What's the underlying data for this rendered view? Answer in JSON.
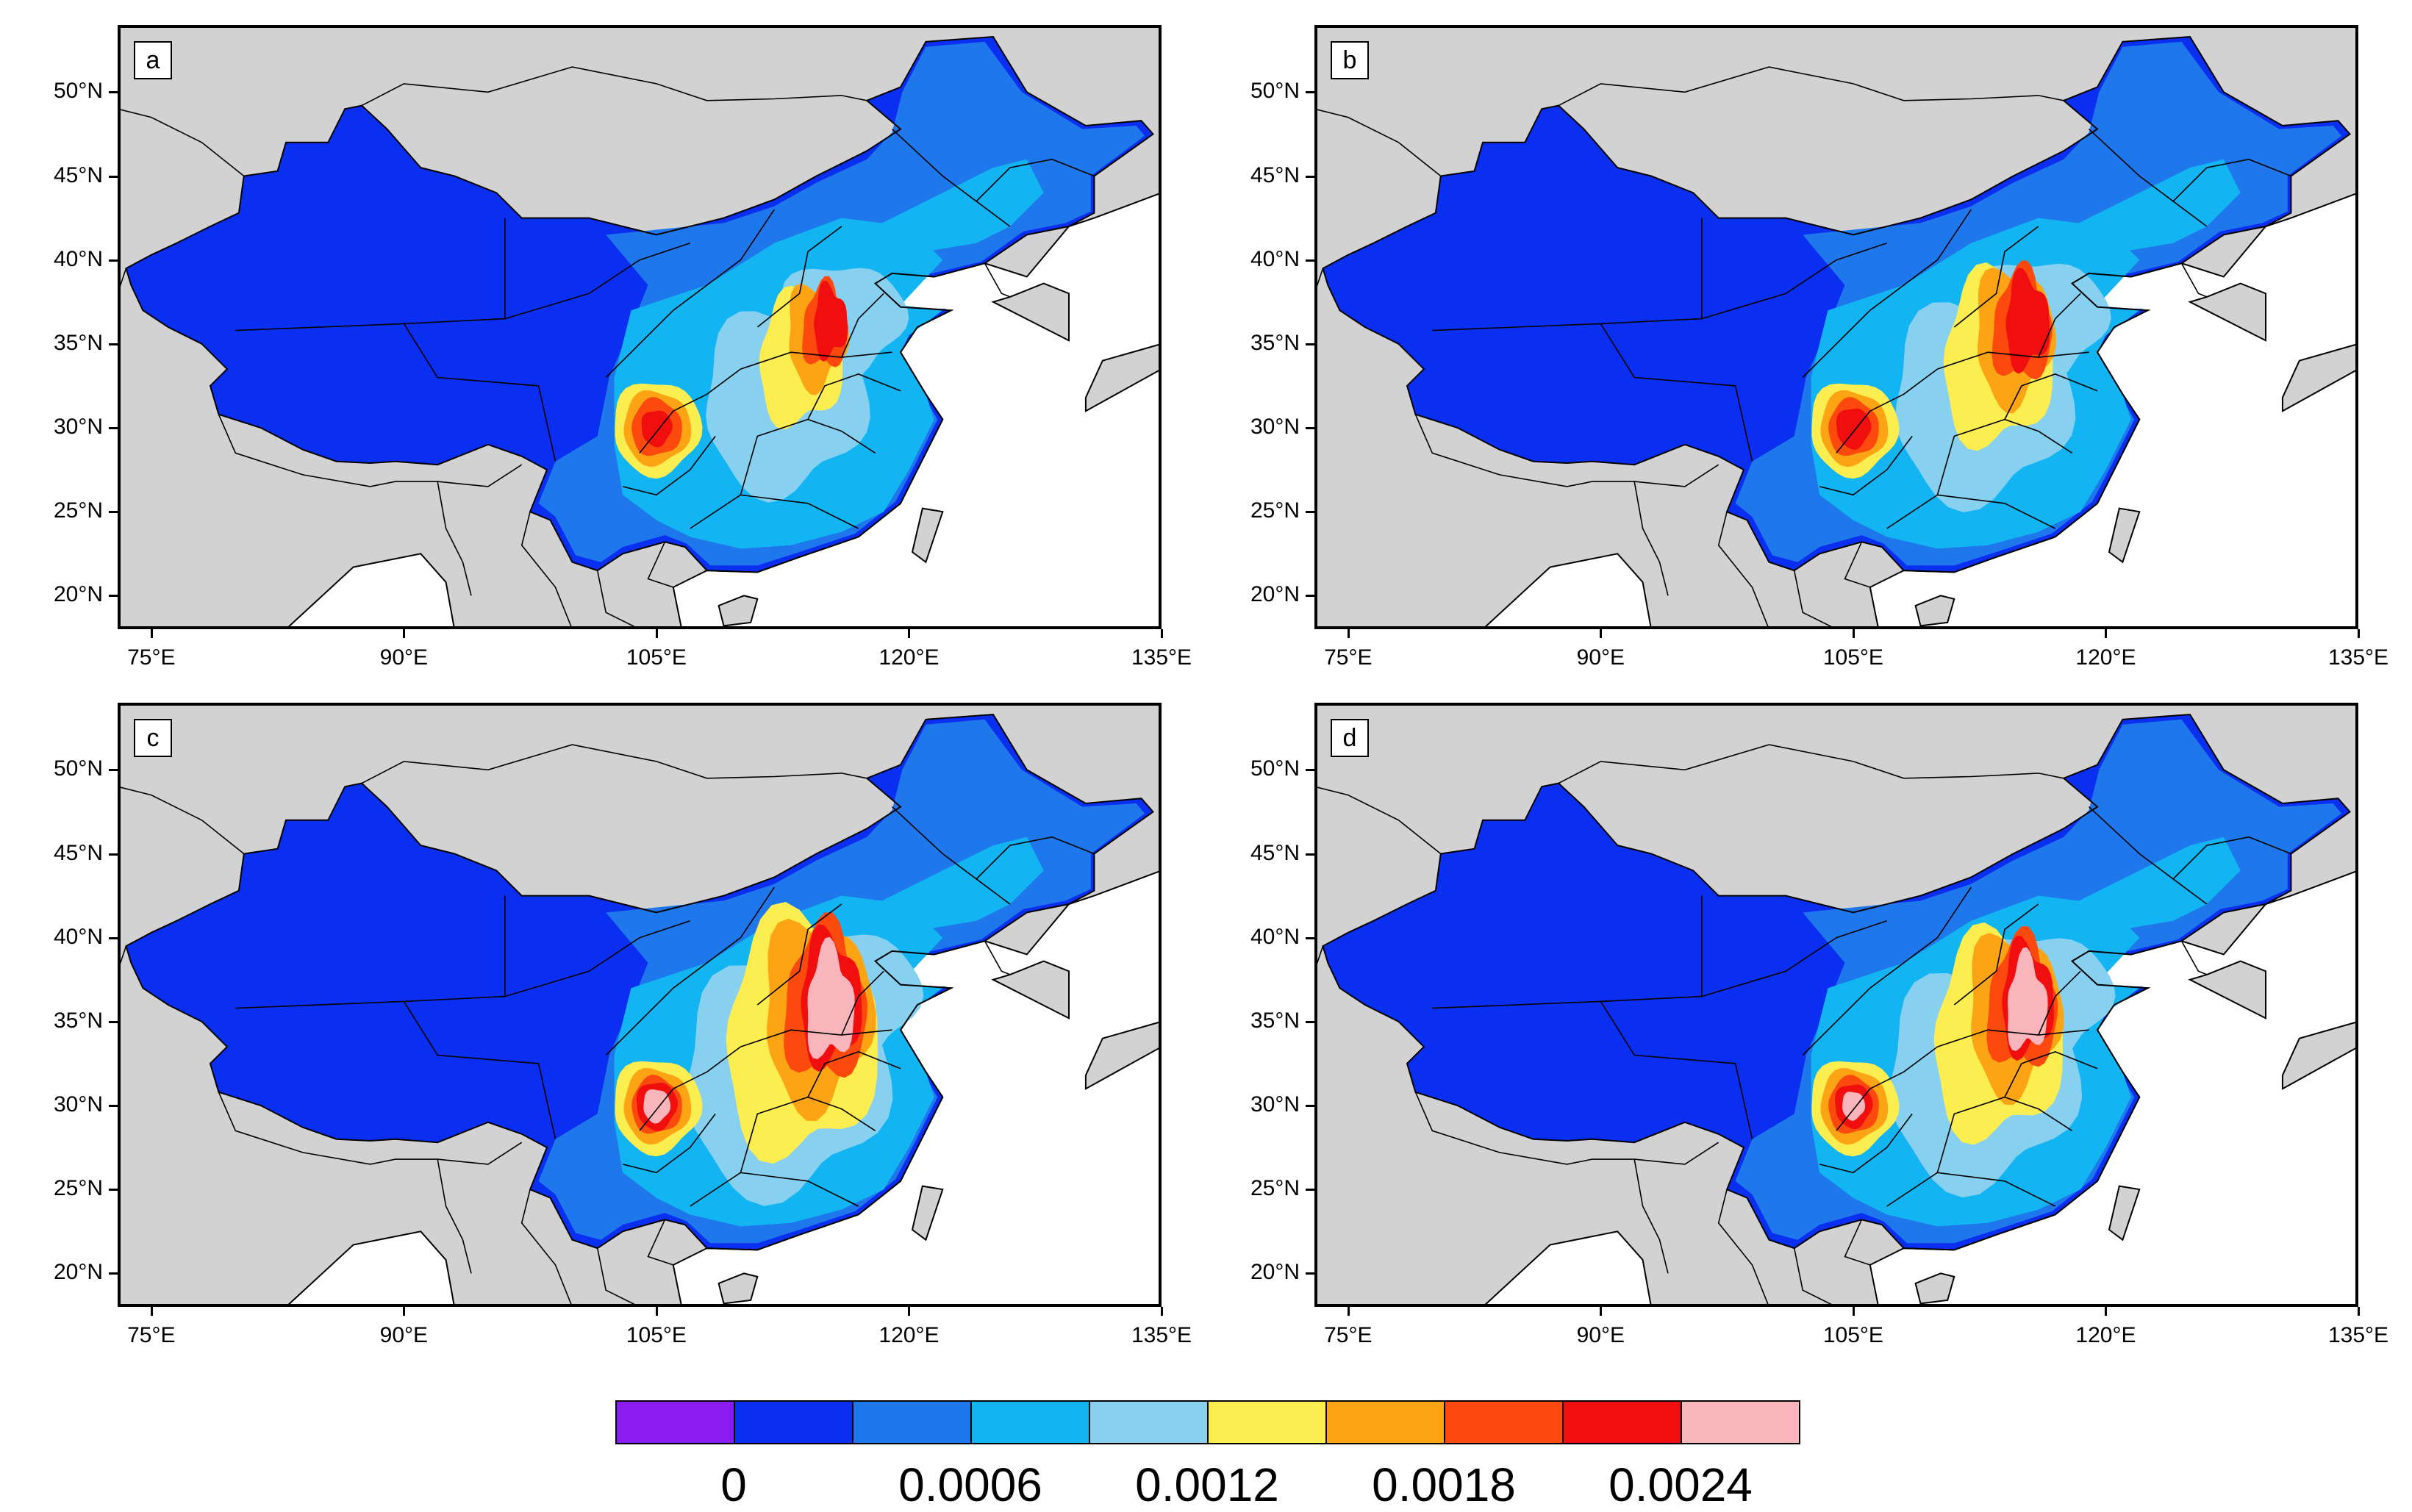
{
  "panels": [
    {
      "letter": "a",
      "intensity": 0.55
    },
    {
      "letter": "b",
      "intensity": 0.72
    },
    {
      "letter": "c",
      "intensity": 1.0
    },
    {
      "letter": "d",
      "intensity": 0.85
    }
  ],
  "axes": {
    "lat_ticks": [
      "50°N",
      "45°N",
      "40°N",
      "35°N",
      "30°N",
      "25°N",
      "20°N"
    ],
    "lat_values": [
      50,
      45,
      40,
      35,
      30,
      25,
      20
    ],
    "lon_ticks": [
      "75°E",
      "90°E",
      "105°E",
      "120°E",
      "135°E"
    ],
    "lon_values": [
      75,
      90,
      105,
      120,
      135
    ],
    "lat_range": [
      18,
      54
    ],
    "lon_range": [
      73,
      135
    ]
  },
  "colorbar": {
    "colors": [
      "#8a1cf0",
      "#0a2ff0",
      "#1e78ec",
      "#12b4f2",
      "#88d0f0",
      "#fced50",
      "#fca414",
      "#fc4a0e",
      "#f00e0e",
      "#f9b5bb"
    ],
    "labels": [
      "0",
      "0.0006",
      "0.0012",
      "0.0018",
      "0.0024"
    ]
  },
  "palette": {
    "land": "#d2d2d2",
    "ocean": "#ffffff",
    "border": "#000000"
  }
}
